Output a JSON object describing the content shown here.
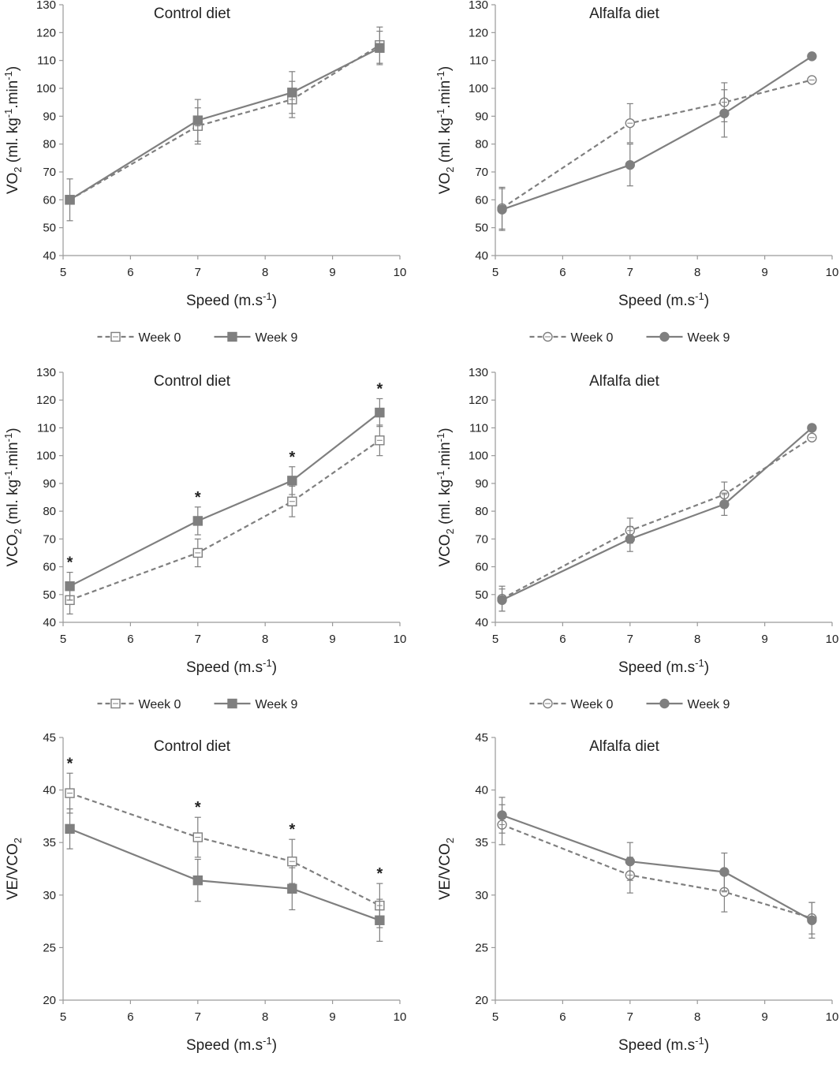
{
  "chart_data": [
    {
      "type": "line",
      "title": "Control diet",
      "xlabel": "Speed (m.s⁻¹)",
      "ylabel": "V̇O₂ (ml. kg⁻¹.min⁻¹)",
      "xlim": [
        5,
        10
      ],
      "xticks": [
        5,
        6,
        7,
        8,
        9,
        10
      ],
      "ylim": [
        40,
        130
      ],
      "yticks": [
        40,
        50,
        60,
        70,
        80,
        90,
        100,
        110,
        120,
        130
      ],
      "x": [
        5.1,
        7,
        8.4,
        9.7
      ],
      "marker": "square",
      "legend": [
        "Week 0",
        "Week 9"
      ],
      "series": [
        {
          "name": "Week 0",
          "values": [
            60,
            86.5,
            96,
            115.5
          ],
          "errors": [
            0,
            6.5,
            6.5,
            6.5
          ],
          "style": "dashed",
          "filled": false
        },
        {
          "name": "Week 9",
          "values": [
            60,
            88.5,
            98.5,
            114.5
          ],
          "errors": [
            7.5,
            7.5,
            7.5,
            6
          ],
          "style": "solid",
          "filled": true
        }
      ],
      "annotations": []
    },
    {
      "type": "line",
      "title": "Alfalfa diet",
      "xlabel": "Speed (m.s⁻¹)",
      "ylabel": "V̇O₂ (ml. kg⁻¹.min⁻¹)",
      "xlim": [
        5,
        10
      ],
      "xticks": [
        5,
        6,
        7,
        8,
        9,
        10
      ],
      "ylim": [
        40,
        130
      ],
      "yticks": [
        40,
        50,
        60,
        70,
        80,
        90,
        100,
        110,
        120,
        130
      ],
      "x": [
        5.1,
        7,
        8.4,
        9.7
      ],
      "marker": "circle",
      "legend": [
        "Week 0",
        "Week 9"
      ],
      "series": [
        {
          "name": "Week 0",
          "values": [
            57,
            87.5,
            95,
            103
          ],
          "errors": [
            7.5,
            7,
            7,
            0
          ],
          "style": "dashed",
          "filled": false
        },
        {
          "name": "Week 9",
          "values": [
            56.5,
            72.5,
            91,
            111.5
          ],
          "errors": [
            7.5,
            7.5,
            8.5,
            0
          ],
          "style": "solid",
          "filled": true
        }
      ],
      "annotations": []
    },
    {
      "type": "line",
      "title": "Control diet",
      "xlabel": "Speed (m.s⁻¹)",
      "ylabel": "V̇CO₂ (ml. kg⁻¹.min⁻¹)",
      "xlim": [
        5,
        10
      ],
      "xticks": [
        5,
        6,
        7,
        8,
        9,
        10
      ],
      "ylim": [
        40,
        130
      ],
      "yticks": [
        40,
        50,
        60,
        70,
        80,
        90,
        100,
        110,
        120,
        130
      ],
      "x": [
        5.1,
        7,
        8.4,
        9.7
      ],
      "marker": "square",
      "legend": [
        "Week 0",
        "Week 9"
      ],
      "series": [
        {
          "name": "Week 0",
          "values": [
            48,
            65,
            83.5,
            105.5
          ],
          "errors": [
            5,
            5,
            5.5,
            5.5
          ],
          "style": "dashed",
          "filled": false
        },
        {
          "name": "Week 9",
          "values": [
            53,
            76.5,
            91,
            115.5
          ],
          "errors": [
            5,
            5,
            5,
            5
          ],
          "style": "solid",
          "filled": true
        }
      ],
      "annotations": [
        "*",
        "*",
        "*",
        "*"
      ]
    },
    {
      "type": "line",
      "title": "Alfalfa diet",
      "xlabel": "Speed (m.s⁻¹)",
      "ylabel": "V̇CO₂ (ml. kg⁻¹.min⁻¹)",
      "xlim": [
        5,
        10
      ],
      "xticks": [
        5,
        6,
        7,
        8,
        9,
        10
      ],
      "ylim": [
        40,
        130
      ],
      "yticks": [
        40,
        50,
        60,
        70,
        80,
        90,
        100,
        110,
        120,
        130
      ],
      "x": [
        5.1,
        7,
        8.4,
        9.7
      ],
      "marker": "circle",
      "legend": [
        "Week 0",
        "Week 9"
      ],
      "series": [
        {
          "name": "Week 0",
          "values": [
            48.5,
            73,
            86,
            106.5
          ],
          "errors": [
            4.5,
            4.5,
            4.5,
            0
          ],
          "style": "dashed",
          "filled": false
        },
        {
          "name": "Week 9",
          "values": [
            48,
            70,
            82.5,
            110
          ],
          "errors": [
            4,
            4.5,
            4,
            0
          ],
          "style": "solid",
          "filled": true
        }
      ],
      "annotations": []
    },
    {
      "type": "line",
      "title": "Control diet",
      "xlabel": "Speed (m.s⁻¹)",
      "ylabel": "V̇E/V̇CO₂",
      "xlim": [
        5,
        10
      ],
      "xticks": [
        5,
        6,
        7,
        8,
        9,
        10
      ],
      "ylim": [
        20,
        45
      ],
      "yticks": [
        20,
        25,
        30,
        35,
        40,
        45
      ],
      "x": [
        5.1,
        7,
        8.4,
        9.7
      ],
      "marker": "square",
      "legend": [
        "Week 0",
        "Week 9"
      ],
      "series": [
        {
          "name": "Week 0",
          "values": [
            39.7,
            35.5,
            33.2,
            29
          ],
          "errors": [
            1.9,
            1.9,
            2.1,
            2.1
          ],
          "style": "dashed",
          "filled": false
        },
        {
          "name": "Week 9",
          "values": [
            36.3,
            31.4,
            30.6,
            27.6
          ],
          "errors": [
            1.9,
            2,
            2,
            2
          ],
          "style": "solid",
          "filled": true
        }
      ],
      "annotations": [
        "*",
        "*",
        "*",
        "*"
      ]
    },
    {
      "type": "line",
      "title": "Alfalfa diet",
      "xlabel": "Speed (m.s⁻¹)",
      "ylabel": "V̇E/V̇CO₂",
      "xlim": [
        5,
        10
      ],
      "xticks": [
        5,
        6,
        7,
        8,
        9,
        10
      ],
      "ylim": [
        20,
        45
      ],
      "yticks": [
        20,
        25,
        30,
        35,
        40,
        45
      ],
      "x": [
        5.1,
        7,
        8.4,
        9.7
      ],
      "marker": "circle",
      "legend": [
        "Week 0",
        "Week 9"
      ],
      "series": [
        {
          "name": "Week 0",
          "values": [
            36.7,
            31.9,
            30.3,
            27.8
          ],
          "errors": [
            1.9,
            1.7,
            1.9,
            1.5
          ],
          "style": "dashed",
          "filled": false
        },
        {
          "name": "Week 9",
          "values": [
            37.6,
            33.2,
            32.2,
            27.6
          ],
          "errors": [
            1.7,
            1.8,
            1.8,
            1.7
          ],
          "style": "solid",
          "filled": true
        }
      ],
      "annotations": []
    }
  ],
  "colors": {
    "line": "#7f7f7f",
    "axis": "#9a9a9a",
    "text": "#222222"
  }
}
